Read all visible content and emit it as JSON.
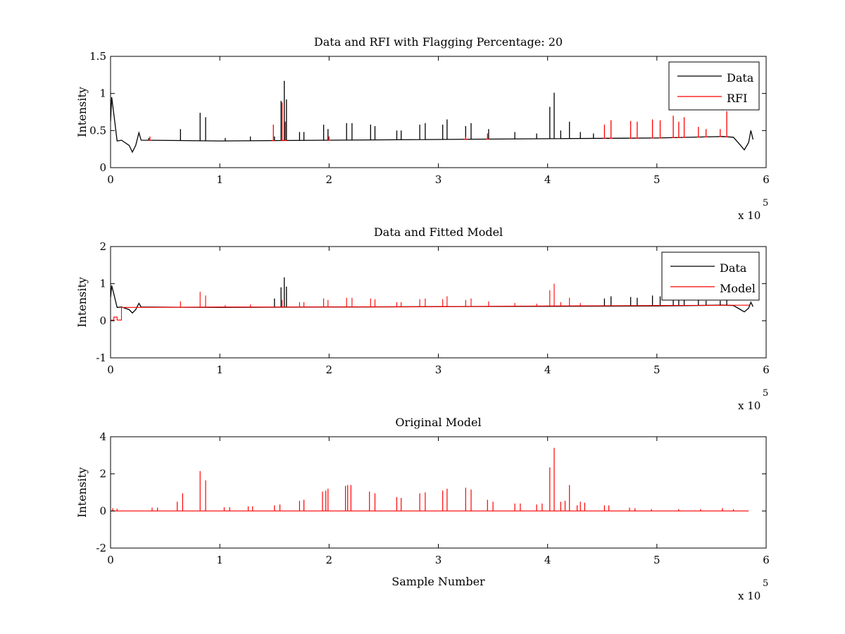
{
  "chart_data": [
    {
      "type": "line",
      "title": "Data and RFI with Flagging Percentage: 20",
      "xlabel": "",
      "ylabel": "Intensity",
      "xlim": [
        0,
        6
      ],
      "ylim": [
        0,
        1.5
      ],
      "xticks": [
        "0",
        "1",
        "2",
        "3",
        "4",
        "5",
        "6"
      ],
      "yticks": [
        "0",
        "0.5",
        "1",
        "1.5"
      ],
      "x_multiplier": "x 10",
      "x_exponent": "5",
      "legend": {
        "position": "top-right",
        "entries": [
          "Data",
          "RFI"
        ]
      },
      "grid": false,
      "baseline": [
        [
          0,
          0.62
        ],
        [
          0.01,
          0.95
        ],
        [
          0.03,
          0.72
        ],
        [
          0.06,
          0.36
        ],
        [
          0.1,
          0.37
        ],
        [
          0.17,
          0.3
        ],
        [
          0.2,
          0.21
        ],
        [
          0.23,
          0.3
        ],
        [
          0.26,
          0.47
        ],
        [
          0.28,
          0.37
        ],
        [
          1,
          0.36
        ],
        [
          2,
          0.37
        ],
        [
          3,
          0.38
        ],
        [
          4,
          0.39
        ],
        [
          5,
          0.4
        ],
        [
          5.6,
          0.42
        ],
        [
          5.7,
          0.41
        ],
        [
          5.76,
          0.31
        ],
        [
          5.8,
          0.24
        ],
        [
          5.84,
          0.34
        ],
        [
          5.86,
          0.5
        ],
        [
          5.88,
          0.38
        ]
      ],
      "series": [
        {
          "name": "Data",
          "color": "#000000",
          "spikes": [
            [
              0.35,
              0.4
            ],
            [
              0.64,
              0.52
            ],
            [
              0.82,
              0.74
            ],
            [
              0.87,
              0.68
            ],
            [
              1.05,
              0.4
            ],
            [
              1.28,
              0.42
            ],
            [
              1.5,
              0.42
            ],
            [
              1.56,
              0.9
            ],
            [
              1.59,
              1.17
            ],
            [
              1.61,
              0.92
            ],
            [
              1.73,
              0.48
            ],
            [
              1.77,
              0.48
            ],
            [
              1.95,
              0.58
            ],
            [
              1.99,
              0.52
            ],
            [
              2.16,
              0.6
            ],
            [
              2.21,
              0.6
            ],
            [
              2.38,
              0.58
            ],
            [
              2.42,
              0.56
            ],
            [
              2.62,
              0.5
            ],
            [
              2.66,
              0.5
            ],
            [
              2.83,
              0.58
            ],
            [
              2.88,
              0.6
            ],
            [
              3.04,
              0.58
            ],
            [
              3.08,
              0.65
            ],
            [
              3.25,
              0.56
            ],
            [
              3.3,
              0.6
            ],
            [
              3.46,
              0.52
            ],
            [
              3.7,
              0.48
            ],
            [
              3.9,
              0.46
            ],
            [
              4.02,
              0.82
            ],
            [
              4.06,
              1.01
            ],
            [
              4.12,
              0.5
            ],
            [
              4.2,
              0.62
            ],
            [
              4.3,
              0.48
            ],
            [
              4.42,
              0.46
            ]
          ]
        },
        {
          "name": "RFI",
          "color": "#ff0000",
          "spikes": [
            [
              0.36,
              0.42
            ],
            [
              1.49,
              0.58
            ],
            [
              1.57,
              0.88
            ],
            [
              1.6,
              0.62
            ],
            [
              2.0,
              0.42
            ],
            [
              3.25,
              0.42
            ],
            [
              3.45,
              0.46
            ],
            [
              4.52,
              0.58
            ],
            [
              4.58,
              0.64
            ],
            [
              4.76,
              0.63
            ],
            [
              4.82,
              0.62
            ],
            [
              4.96,
              0.65
            ],
            [
              5.03,
              0.64
            ],
            [
              5.15,
              0.7
            ],
            [
              5.2,
              0.62
            ],
            [
              5.25,
              0.68
            ],
            [
              5.38,
              0.55
            ],
            [
              5.45,
              0.52
            ],
            [
              5.58,
              0.52
            ],
            [
              5.64,
              0.76
            ]
          ]
        }
      ]
    },
    {
      "type": "line",
      "title": "Data and Fitted Model",
      "xlabel": "",
      "ylabel": "Intensity",
      "xlim": [
        0,
        6
      ],
      "ylim": [
        -1,
        2
      ],
      "xticks": [
        "0",
        "1",
        "2",
        "3",
        "4",
        "5",
        "6"
      ],
      "yticks": [
        "-1",
        "0",
        "1",
        "2"
      ],
      "x_multiplier": "x 10",
      "x_exponent": "5",
      "legend": {
        "position": "top-right",
        "entries": [
          "Data",
          "Model"
        ]
      },
      "grid": false,
      "baseline": [
        [
          0,
          0.62
        ],
        [
          0.01,
          0.95
        ],
        [
          0.03,
          0.72
        ],
        [
          0.06,
          0.36
        ],
        [
          0.1,
          0.37
        ],
        [
          0.17,
          0.3
        ],
        [
          0.2,
          0.21
        ],
        [
          0.23,
          0.3
        ],
        [
          0.26,
          0.47
        ],
        [
          0.28,
          0.37
        ],
        [
          1,
          0.36
        ],
        [
          2,
          0.37
        ],
        [
          3,
          0.38
        ],
        [
          4,
          0.39
        ],
        [
          5,
          0.4
        ],
        [
          5.6,
          0.42
        ],
        [
          5.7,
          0.41
        ],
        [
          5.76,
          0.31
        ],
        [
          5.8,
          0.24
        ],
        [
          5.84,
          0.34
        ],
        [
          5.86,
          0.5
        ],
        [
          5.88,
          0.38
        ]
      ],
      "model_baseline": [
        [
          0,
          0.02
        ],
        [
          0.03,
          0.02
        ],
        [
          0.03,
          0.1
        ],
        [
          0.06,
          0.1
        ],
        [
          0.06,
          0.02
        ],
        [
          0.1,
          0.02
        ],
        [
          0.1,
          0.36
        ],
        [
          1,
          0.37
        ],
        [
          2,
          0.37
        ],
        [
          3,
          0.38
        ],
        [
          4,
          0.4
        ],
        [
          5,
          0.41
        ],
        [
          5.85,
          0.42
        ]
      ],
      "series": [
        {
          "name": "Data",
          "color": "#000000",
          "spikes": [
            [
              1.5,
              0.6
            ],
            [
              1.56,
              0.9
            ],
            [
              1.59,
              1.17
            ],
            [
              1.61,
              0.92
            ],
            [
              4.52,
              0.6
            ],
            [
              4.58,
              0.66
            ],
            [
              4.76,
              0.64
            ],
            [
              4.82,
              0.62
            ],
            [
              4.96,
              0.68
            ],
            [
              5.03,
              0.66
            ],
            [
              5.15,
              0.72
            ],
            [
              5.2,
              0.64
            ],
            [
              5.25,
              0.7
            ],
            [
              5.38,
              0.56
            ],
            [
              5.45,
              0.54
            ],
            [
              5.58,
              0.54
            ],
            [
              5.64,
              0.72
            ]
          ]
        },
        {
          "name": "Model",
          "color": "#ff0000",
          "spikes": [
            [
              0.64,
              0.52
            ],
            [
              0.82,
              0.78
            ],
            [
              0.87,
              0.68
            ],
            [
              1.05,
              0.42
            ],
            [
              1.28,
              0.44
            ],
            [
              1.57,
              0.56
            ],
            [
              1.73,
              0.5
            ],
            [
              1.77,
              0.5
            ],
            [
              1.95,
              0.6
            ],
            [
              1.99,
              0.56
            ],
            [
              2.16,
              0.62
            ],
            [
              2.21,
              0.62
            ],
            [
              2.38,
              0.6
            ],
            [
              2.42,
              0.58
            ],
            [
              2.62,
              0.5
            ],
            [
              2.66,
              0.5
            ],
            [
              2.83,
              0.58
            ],
            [
              2.88,
              0.6
            ],
            [
              3.04,
              0.58
            ],
            [
              3.08,
              0.66
            ],
            [
              3.25,
              0.56
            ],
            [
              3.3,
              0.6
            ],
            [
              3.46,
              0.52
            ],
            [
              3.7,
              0.48
            ],
            [
              3.9,
              0.46
            ],
            [
              4.02,
              0.82
            ],
            [
              4.06,
              1.0
            ],
            [
              4.12,
              0.5
            ],
            [
              4.2,
              0.62
            ],
            [
              4.3,
              0.48
            ]
          ]
        }
      ]
    },
    {
      "type": "line",
      "title": "Original Model",
      "xlabel": "Sample Number",
      "ylabel": "Intensity",
      "xlim": [
        0,
        6
      ],
      "ylim": [
        -2,
        4
      ],
      "xticks": [
        "0",
        "1",
        "2",
        "3",
        "4",
        "5",
        "6"
      ],
      "yticks": [
        "-2",
        "0",
        "2",
        "4"
      ],
      "x_multiplier": "x 10",
      "x_exponent": "5",
      "grid": false,
      "series": [
        {
          "name": "",
          "color": "#ff0000",
          "baseline": [
            [
              0,
              0
            ],
            [
              5.84,
              0
            ]
          ],
          "spikes": [
            [
              0.02,
              0.15
            ],
            [
              0.06,
              0.12
            ],
            [
              0.38,
              0.18
            ],
            [
              0.43,
              0.18
            ],
            [
              0.61,
              0.5
            ],
            [
              0.66,
              0.95
            ],
            [
              0.82,
              2.15
            ],
            [
              0.87,
              1.65
            ],
            [
              1.04,
              0.2
            ],
            [
              1.09,
              0.2
            ],
            [
              1.26,
              0.25
            ],
            [
              1.3,
              0.25
            ],
            [
              1.5,
              0.3
            ],
            [
              1.55,
              0.35
            ],
            [
              1.73,
              0.55
            ],
            [
              1.77,
              0.6
            ],
            [
              1.94,
              1.05
            ],
            [
              1.97,
              1.1
            ],
            [
              1.99,
              1.2
            ],
            [
              2.15,
              1.35
            ],
            [
              2.17,
              1.4
            ],
            [
              2.2,
              1.4
            ],
            [
              2.37,
              1.05
            ],
            [
              2.42,
              0.95
            ],
            [
              2.62,
              0.75
            ],
            [
              2.66,
              0.7
            ],
            [
              2.83,
              0.95
            ],
            [
              2.88,
              1.0
            ],
            [
              3.04,
              1.1
            ],
            [
              3.08,
              1.2
            ],
            [
              3.25,
              1.25
            ],
            [
              3.3,
              1.15
            ],
            [
              3.45,
              0.6
            ],
            [
              3.5,
              0.5
            ],
            [
              3.7,
              0.4
            ],
            [
              3.75,
              0.4
            ],
            [
              3.9,
              0.35
            ],
            [
              3.95,
              0.4
            ],
            [
              4.02,
              2.35
            ],
            [
              4.06,
              3.4
            ],
            [
              4.12,
              0.5
            ],
            [
              4.16,
              0.55
            ],
            [
              4.2,
              1.4
            ],
            [
              4.27,
              0.3
            ],
            [
              4.3,
              0.5
            ],
            [
              4.34,
              0.45
            ],
            [
              4.52,
              0.3
            ],
            [
              4.56,
              0.3
            ],
            [
              4.75,
              0.18
            ],
            [
              4.8,
              0.15
            ],
            [
              4.95,
              0.1
            ],
            [
              5.2,
              0.1
            ],
            [
              5.4,
              0.1
            ],
            [
              5.6,
              0.15
            ],
            [
              5.7,
              0.1
            ]
          ]
        }
      ]
    }
  ]
}
